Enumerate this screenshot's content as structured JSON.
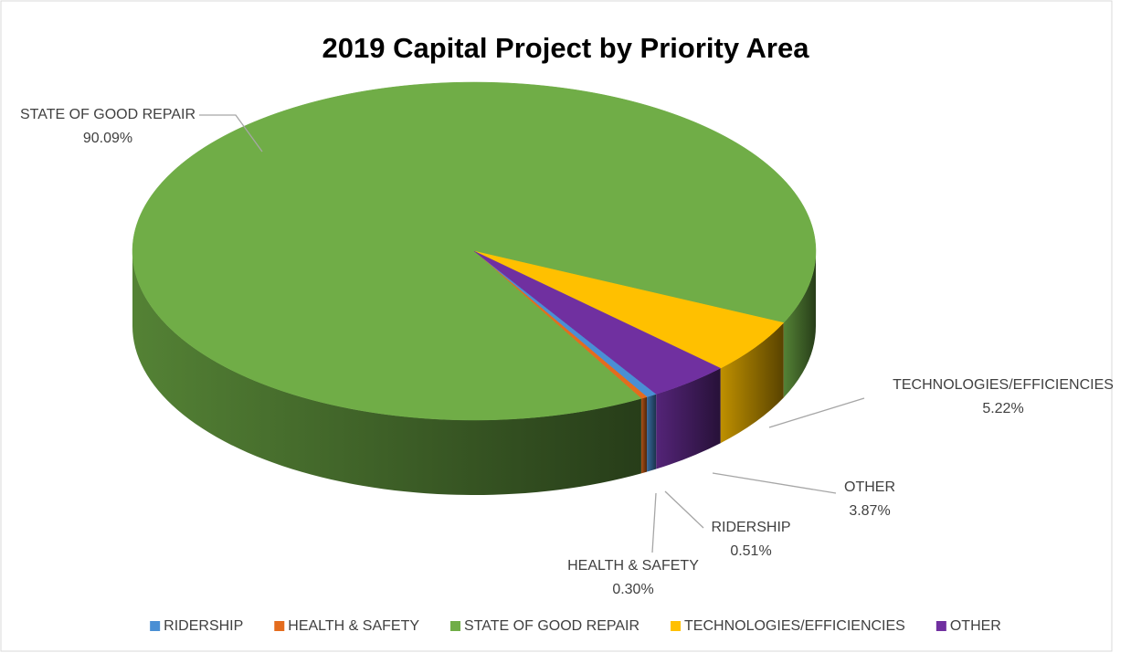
{
  "chart_data": {
    "type": "pie",
    "title": "2019 Capital Project by Priority Area",
    "categories": [
      "RIDERSHIP",
      "HEALTH & SAFETY",
      "STATE OF GOOD REPAIR",
      "TECHNOLOGIES/EFFICIENCIES",
      "OTHER"
    ],
    "values": [
      0.51,
      0.3,
      90.09,
      5.22,
      3.87
    ],
    "value_labels": [
      "0.51%",
      "0.30%",
      "90.09%",
      "5.22%",
      "3.87%"
    ],
    "colors": [
      "#4a8fd4",
      "#e46c1e",
      "#70ad47",
      "#ffc000",
      "#7030a0"
    ],
    "legend": "bottom"
  }
}
